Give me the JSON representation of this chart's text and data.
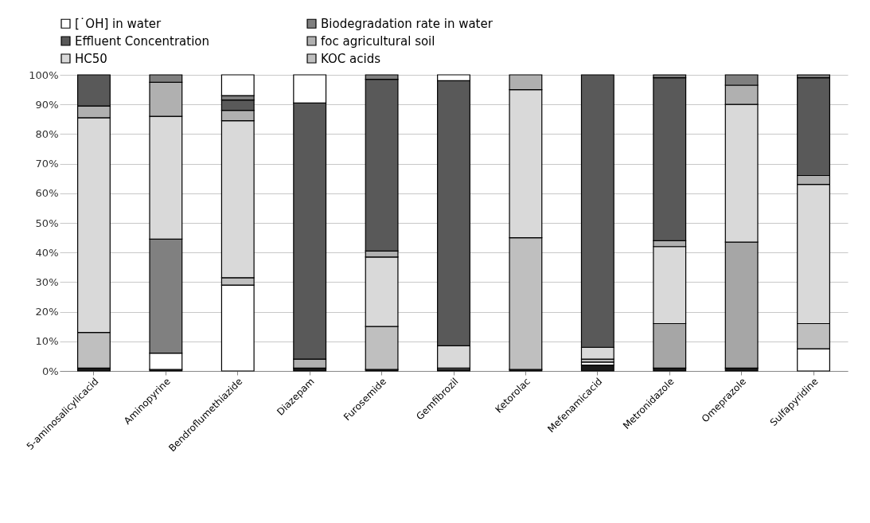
{
  "chart_data": {
    "type": "bar",
    "stacked": true,
    "categories": [
      "5-aminosalicylicacid",
      "Aminopyrine",
      "Bendroflumethiazide",
      "Diazepam",
      "Furosemide",
      "Gemfibrozil",
      "Ketorolac",
      "Mefenamicacid",
      "Metronidazole",
      "Omeprazole",
      "Sulfapyridine"
    ],
    "series": [
      {
        "color": "#1a1a1a",
        "values": [
          1,
          0.5,
          0,
          1,
          0.5,
          0.5,
          0.5,
          2,
          1,
          1,
          0
        ]
      },
      {
        "color": "#ffffff",
        "values": [
          0,
          5.5,
          29,
          0,
          0,
          0,
          0,
          1,
          0,
          0,
          7.5
        ]
      },
      {
        "color": "#808080",
        "values": [
          0,
          38.5,
          0,
          0,
          0,
          0,
          0,
          0,
          0,
          0,
          0
        ]
      },
      {
        "color": "#a6a6a6",
        "values": [
          0,
          0,
          0,
          0,
          0,
          0,
          0,
          0,
          15,
          42.5,
          0
        ]
      },
      {
        "name": "KOC acids",
        "color": "#bfbfbf",
        "values": [
          12,
          0,
          2.5,
          0,
          14.5,
          0.5,
          44.5,
          1,
          0,
          0,
          8.5
        ]
      },
      {
        "name": "HC50",
        "color": "#d9d9d9",
        "values": [
          72.5,
          41.5,
          53,
          0,
          23.5,
          7.5,
          50,
          4,
          26,
          46.5,
          47
        ]
      },
      {
        "name": "foc agricultural soil",
        "color": "#b0b0b0",
        "values": [
          4,
          11.5,
          3.5,
          3,
          2,
          0,
          5,
          0,
          2,
          6.5,
          3
        ]
      },
      {
        "name": "Effluent Concentration",
        "color": "#595959",
        "values": [
          10.5,
          0,
          3.5,
          86.5,
          58,
          89.5,
          0,
          92,
          55,
          0,
          33
        ]
      },
      {
        "name": "Biodegradation rate in water",
        "color": "#7f7f7f",
        "values": [
          0,
          2.5,
          1.5,
          0,
          1.5,
          0,
          0,
          0,
          1,
          3.5,
          1
        ]
      },
      {
        "name": "[˙OH] in water",
        "color": "#ffffff",
        "values": [
          0,
          0,
          7,
          9.5,
          0,
          2,
          0,
          0,
          0,
          0,
          0
        ]
      }
    ],
    "ylim": [
      0,
      100
    ],
    "yticks": [
      {
        "value": 0,
        "label": "0%"
      },
      {
        "value": 10,
        "label": "10%"
      },
      {
        "value": 20,
        "label": "20%"
      },
      {
        "value": 30,
        "label": "30%"
      },
      {
        "value": 40,
        "label": "40%"
      },
      {
        "value": 50,
        "label": "50%"
      },
      {
        "value": 60,
        "label": "60%"
      },
      {
        "value": 70,
        "label": "70%"
      },
      {
        "value": 80,
        "label": "80%"
      },
      {
        "value": 90,
        "label": "90%"
      },
      {
        "value": 100,
        "label": "100%"
      }
    ],
    "grid": "y",
    "legend": "top"
  }
}
